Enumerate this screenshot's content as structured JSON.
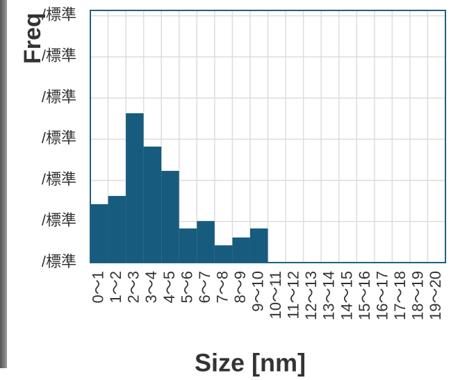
{
  "chart_data": {
    "type": "bar",
    "x_label": "Size [nm]",
    "y_label": "Freq",
    "categories": [
      "0～1",
      "1～2",
      "2～3",
      "3～4",
      "4～5",
      "5～6",
      "6～7",
      "7～8",
      "8～9",
      "9～10",
      "10～11",
      "11～12",
      "12～13",
      "13～14",
      "14～15",
      "15～16",
      "16～17",
      "17～18",
      "18～19",
      "19～20"
    ],
    "values": [
      1.42,
      1.62,
      3.63,
      2.82,
      2.23,
      0.83,
      1.01,
      0.42,
      0.61,
      0.83,
      0,
      0,
      0,
      0,
      0,
      0,
      0,
      0,
      0,
      0
    ],
    "color": "#175b7e",
    "ylim": [
      0,
      6.13
    ],
    "yticks": [
      {
        "value": 0,
        "label": "/標準"
      },
      {
        "value": 1,
        "label": "/標準"
      },
      {
        "value": 2,
        "label": "/標準"
      },
      {
        "value": 3,
        "label": "/標準"
      },
      {
        "value": 4,
        "label": "/標準"
      },
      {
        "value": 5,
        "label": "/標準"
      },
      {
        "value": 6,
        "label": "/標準"
      }
    ],
    "grid": true
  }
}
